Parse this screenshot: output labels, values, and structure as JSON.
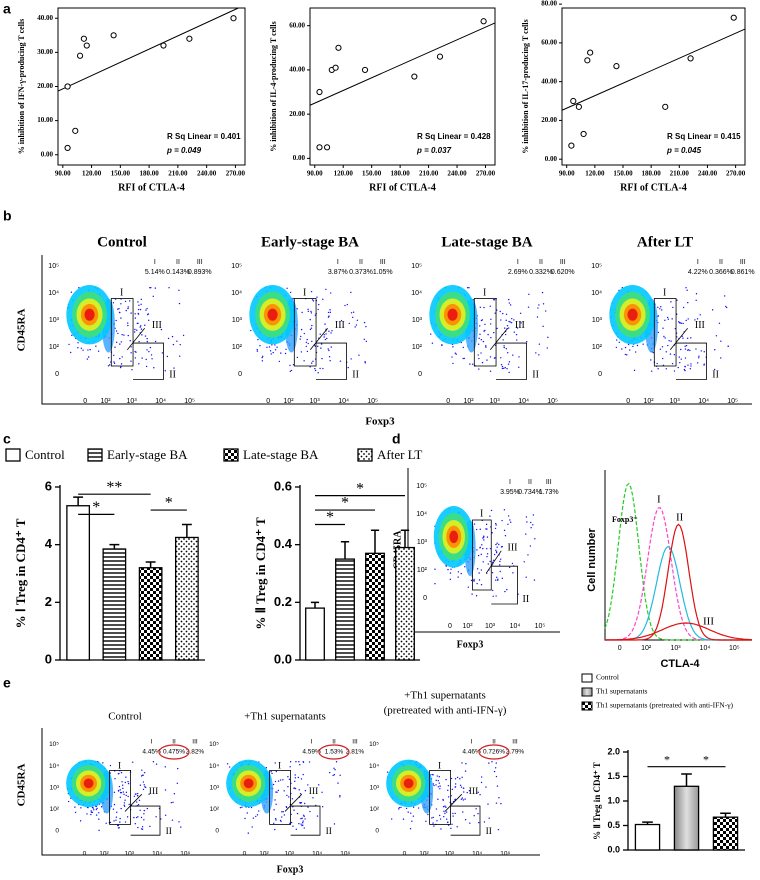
{
  "panels": {
    "a": "a",
    "b": "b",
    "c": "c",
    "d": "d",
    "e": "e"
  },
  "chart_data": [
    {
      "type": "scatter",
      "y_label": "% inhibition of IFN-γ-producing T cells",
      "x_label": "RFI of CTLA-4",
      "x": [
        95,
        95,
        103,
        108,
        112,
        115,
        143,
        195,
        222,
        268
      ],
      "y": [
        2,
        20,
        7,
        29,
        34,
        32,
        35,
        32,
        34,
        40
      ],
      "xlim": [
        85,
        280
      ],
      "ylim": [
        -3,
        43
      ],
      "xticks": [
        {
          "value": 90,
          "label": "90.00"
        },
        {
          "value": 120,
          "label": "120.00"
        },
        {
          "value": 150,
          "label": "150.00"
        },
        {
          "value": 180,
          "label": "180.00"
        },
        {
          "value": 210,
          "label": "210.00"
        },
        {
          "value": 240,
          "label": "240.00"
        },
        {
          "value": 270,
          "label": "270.00"
        }
      ],
      "yticks": [
        {
          "value": 0,
          "label": "0.00"
        },
        {
          "value": 10,
          "label": "10.00"
        },
        {
          "value": 20,
          "label": "20.00"
        },
        {
          "value": 30,
          "label": "30.00"
        },
        {
          "value": 40,
          "label": "40.00"
        }
      ],
      "annotations": [
        "R Sq Linear = 0.401",
        "p = 0.049"
      ],
      "fit_line": true
    },
    {
      "type": "scatter",
      "y_label": "% inhibition of IL-4-producing T cells",
      "x_label": "RFI of CTLA-4",
      "x": [
        95,
        95,
        103,
        108,
        112,
        115,
        143,
        195,
        222,
        268
      ],
      "y": [
        30,
        5,
        5,
        40,
        41,
        50,
        40,
        37,
        46,
        62
      ],
      "xlim": [
        85,
        280
      ],
      "ylim": [
        -3,
        68
      ],
      "xticks": [
        {
          "value": 90,
          "label": "90.00"
        },
        {
          "value": 120,
          "label": "120.00"
        },
        {
          "value": 150,
          "label": "150.00"
        },
        {
          "value": 180,
          "label": "180.00"
        },
        {
          "value": 210,
          "label": "210.00"
        },
        {
          "value": 240,
          "label": "240.00"
        },
        {
          "value": 270,
          "label": "270.00"
        }
      ],
      "yticks": [
        {
          "value": 0,
          "label": "0.00"
        },
        {
          "value": 20,
          "label": "20.00"
        },
        {
          "value": 40,
          "label": "40.00"
        },
        {
          "value": 60,
          "label": "60.00"
        }
      ],
      "annotations": [
        "R Sq Linear = 0.428",
        "p = 0.037"
      ],
      "fit_line": true
    },
    {
      "type": "scatter",
      "y_label": "% inhibition of IL-17-producing T cells",
      "x_label": "RFI of CTLA-4",
      "x": [
        95,
        97,
        103,
        108,
        112,
        115,
        143,
        195,
        222,
        268
      ],
      "y": [
        7,
        30,
        27,
        13,
        51,
        55,
        48,
        27,
        52,
        73
      ],
      "xlim": [
        85,
        280
      ],
      "ylim": [
        -3,
        78
      ],
      "xticks": [
        {
          "value": 90,
          "label": "90.00"
        },
        {
          "value": 120,
          "label": "120.00"
        },
        {
          "value": 150,
          "label": "150.00"
        },
        {
          "value": 180,
          "label": "180.00"
        },
        {
          "value": 210,
          "label": "210.00"
        },
        {
          "value": 240,
          "label": "240.00"
        },
        {
          "value": 270,
          "label": "270.00"
        }
      ],
      "yticks": [
        {
          "value": 0,
          "label": "0.00"
        },
        {
          "value": 20,
          "label": "20.00"
        },
        {
          "value": 40,
          "label": "40.00"
        },
        {
          "value": 60,
          "label": "60.00"
        },
        {
          "value": 80,
          "label": "80.00"
        }
      ],
      "annotations": [
        "R Sq Linear = 0.415",
        "p = 0.045"
      ],
      "fit_line": true
    },
    {
      "type": "bar",
      "y_label": "% Ⅰ Treg in CD4⁺ T",
      "categories": [
        "Control",
        "Early-stage BA",
        "Late-stage BA",
        "After LT"
      ],
      "legend": "top",
      "values": [
        5.35,
        3.85,
        3.2,
        4.25
      ],
      "errors": [
        0.3,
        0.15,
        0.2,
        0.45
      ],
      "patterns": [
        "none",
        "hstripe",
        "check",
        "dots"
      ],
      "ylim": [
        0,
        6
      ],
      "yticks": [
        0,
        2,
        4,
        6
      ],
      "significance": [
        {
          "label": "**",
          "from": 0,
          "to": 2,
          "y": 5.75
        },
        {
          "label": "*",
          "from": 0,
          "to": 1,
          "y": 5.05
        },
        {
          "label": "*",
          "from": 2,
          "to": 3,
          "y": 5.2
        }
      ]
    },
    {
      "type": "bar",
      "y_label": "% Ⅱ Treg in CD4⁺ T",
      "values": [
        0.18,
        0.35,
        0.37,
        0.39
      ],
      "errors": [
        0.02,
        0.06,
        0.08,
        0.06
      ],
      "patterns": [
        "none",
        "hstripe",
        "check",
        "dots"
      ],
      "ylim": [
        0,
        0.6
      ],
      "yticks": [
        {
          "value": 0,
          "label": "0.0"
        },
        0.2,
        0.4,
        0.6
      ],
      "significance": [
        {
          "label": "*",
          "from": 0,
          "to": 1,
          "y": 0.47
        },
        {
          "label": "*",
          "from": 0,
          "to": 2,
          "y": 0.52
        },
        {
          "label": "*",
          "from": 0,
          "to": 3,
          "y": 0.57
        }
      ]
    },
    {
      "type": "bar",
      "y_label": "% Ⅱ Treg in CD4⁺ T",
      "categories": [
        "Control",
        "Th1 supernatants",
        "Th1 supernatants (pretreated with anti-IFN-γ)"
      ],
      "legend": "top-right",
      "values": [
        0.52,
        1.3,
        0.67
      ],
      "errors": [
        0.05,
        0.25,
        0.08
      ],
      "patterns": [
        "none",
        "gray",
        "check"
      ],
      "ylim": [
        0,
        2
      ],
      "yticks": [
        {
          "value": 0,
          "label": "0.0"
        },
        0.5,
        {
          "value": 1,
          "label": "1.0"
        },
        1.5,
        {
          "value": 2,
          "label": "2.0"
        }
      ],
      "significance": [
        {
          "label": "*",
          "from": 0,
          "to": 1,
          "y": 1.7
        },
        {
          "label": "*",
          "from": 1,
          "to": 2,
          "y": 1.7
        }
      ]
    }
  ],
  "flow": {
    "y_label": "CD45RA",
    "x_label": "Foxp3",
    "y_ticks": [
      "10⁵",
      "10⁴",
      "10³",
      "10²",
      "0"
    ],
    "x_ticks": [
      "0",
      "10²",
      "10³",
      "10⁴",
      "10⁵"
    ],
    "gate_names": [
      "I",
      "II",
      "III"
    ],
    "b": [
      {
        "title": "Control",
        "percents": [
          "5.14%",
          "0.143%",
          "0.893%"
        ]
      },
      {
        "title": "Early-stage BA",
        "percents": [
          "3.87%",
          "0.373%",
          "1.05%"
        ]
      },
      {
        "title": "Late-stage BA",
        "percents": [
          "2.69%",
          "0.332%",
          "0.620%"
        ]
      },
      {
        "title": "After LT",
        "percents": [
          "4.22%",
          "0.366%",
          "0.861%"
        ]
      }
    ],
    "d": {
      "percents": [
        "3.95%",
        "0.734%",
        "1.73%"
      ]
    },
    "e": [
      {
        "title": "Control",
        "percents": [
          "4.45%",
          "0.475%",
          "2.82%"
        ]
      },
      {
        "title": "+Th1 supernatants",
        "percents": [
          "4.59%",
          "1.53%",
          "2.81%"
        ]
      },
      {
        "title": "+Th1 supernatants",
        "subtitle": "(pretreated with anti-IFN-γ)",
        "percents": [
          "4.46%",
          "0.726%",
          "2.79%"
        ]
      }
    ]
  },
  "histogram": {
    "y_label": "Cell number",
    "x_label": "CTLA-4",
    "negative_label": "Foxp3⁻"
  }
}
